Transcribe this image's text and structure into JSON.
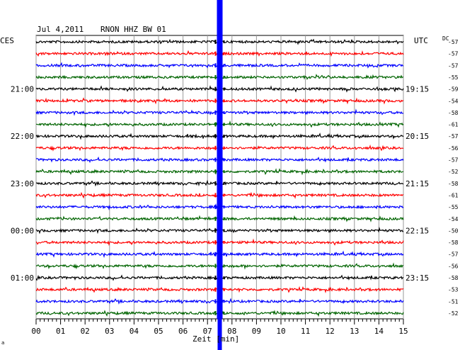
{
  "header": {
    "date": "Jul 4,2011",
    "station": "RNON HHZ BW 01"
  },
  "left_zone": "CES",
  "right_zone": "UTC",
  "dc_header": "DC",
  "footer_corner": "a",
  "chart_data": {
    "type": "line",
    "title": "Jul 4,2011   RNON HHZ BW 01",
    "xlabel": "Zeit [min]",
    "xlim": [
      0,
      15
    ],
    "x_ticks": [
      "00",
      "01",
      "02",
      "03",
      "04",
      "05",
      "06",
      "07",
      "08",
      "09",
      "10",
      "11",
      "12",
      "13",
      "14",
      "15"
    ],
    "rows_per_hour": 4,
    "row_minutes": 15,
    "left_hour_labels": [
      "21:00",
      "22:00",
      "23:00",
      "00:00",
      "01:00"
    ],
    "right_hour_labels": [
      "19:15",
      "20:15",
      "21:15",
      "22:15",
      "23:15"
    ],
    "trace_colors": [
      "#000000",
      "#ff0000",
      "#0000ff",
      "#006400"
    ],
    "dc_offsets": [
      -57,
      -57,
      -57,
      -55,
      -59,
      -54,
      -58,
      -61,
      -57,
      -56,
      -57,
      -52,
      -58,
      -61,
      -55,
      -54,
      -50,
      -58,
      -57,
      -56,
      -58,
      -53,
      -51,
      -52
    ],
    "event": {
      "minute": 7.5,
      "color": "#0000ff",
      "description": "large saturated signal"
    }
  }
}
